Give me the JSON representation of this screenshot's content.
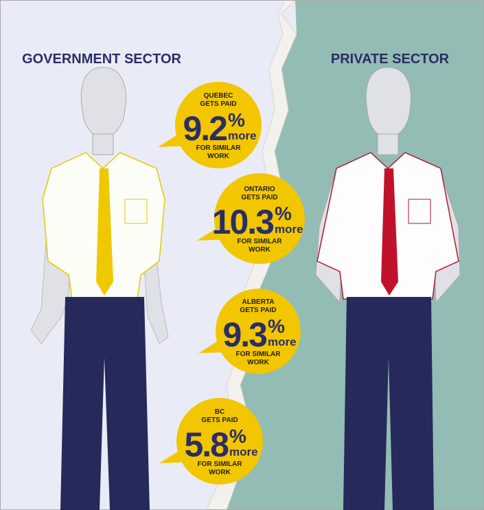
{
  "headings": {
    "left": "GOVERNMENT SECTOR",
    "right": "PRIVATE SECTOR"
  },
  "bubbles": [
    {
      "province": "QUEBEC",
      "gets_paid": "GETS PAID",
      "value": 9.2,
      "unit": "%",
      "suffix": "more",
      "footer": [
        "FOR SIMILAR",
        "WORK"
      ]
    },
    {
      "province": "ONTARIO",
      "gets_paid": "GETS PAID",
      "value": 10.3,
      "unit": "%",
      "suffix": "more",
      "footer": [
        "FOR SIMILAR",
        "WORK"
      ]
    },
    {
      "province": "ALBERTA",
      "gets_paid": "GETS PAID",
      "value": 9.3,
      "unit": "%",
      "suffix": "more",
      "footer": [
        "FOR SIMILAR",
        "WORK"
      ]
    },
    {
      "province": "BC",
      "gets_paid": "GETS PAID",
      "value": 5.8,
      "unit": "%",
      "suffix": "more",
      "footer": [
        "FOR SIMILAR",
        "WORK"
      ]
    }
  ]
}
